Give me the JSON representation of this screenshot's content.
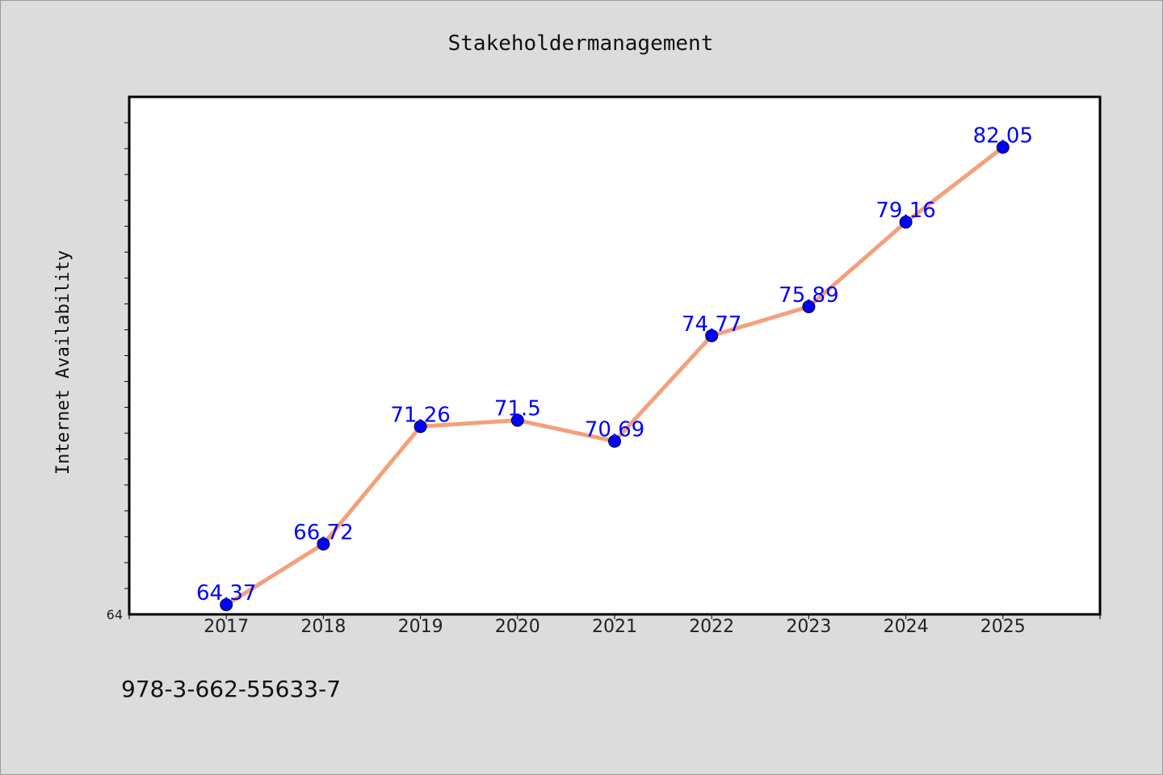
{
  "chart_data": {
    "type": "line",
    "title": "Stakeholdermanagement",
    "xlabel": "",
    "ylabel": "Internet Availability",
    "categories": [
      "2017",
      "2018",
      "2019",
      "2020",
      "2021",
      "2022",
      "2023",
      "2024",
      "2025"
    ],
    "series": [
      {
        "values": [
          64.37,
          66.72,
          71.26,
          71.5,
          70.69,
          74.77,
          75.89,
          79.16,
          82.05
        ],
        "data_labels": [
          "64.37",
          "66.72",
          "71.26",
          "71.5",
          "70.69",
          "74.77",
          "75.89",
          "79.16",
          "82.05"
        ]
      }
    ],
    "y_tick_labels": [
      {
        "value": 64,
        "label": "64"
      }
    ],
    "ylim": [
      64,
      84
    ],
    "xlim": [
      2016,
      2026
    ],
    "grid": false,
    "legend": "none",
    "colors": {
      "line": "#f4a07c",
      "marker": "#0000ff",
      "data_label": "#0000ff",
      "plot_background": "#ffffff",
      "page_background": "#dcdcdc"
    }
  },
  "footer": {
    "isbn": "978-3-662-55633-7"
  }
}
